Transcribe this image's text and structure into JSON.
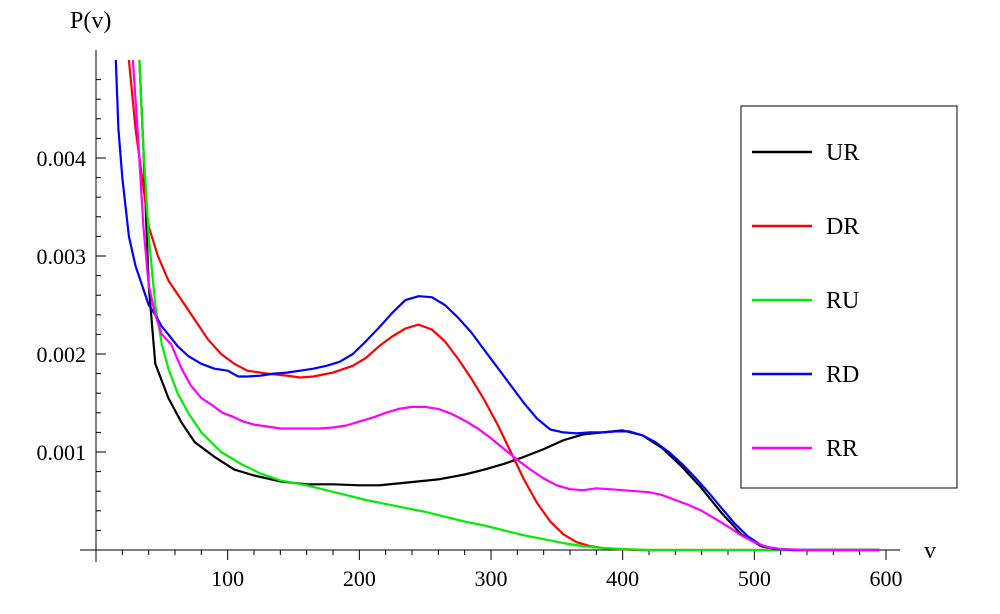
{
  "chart_data": {
    "type": "line",
    "title": "",
    "xlabel": "v",
    "ylabel": "P(v)",
    "xlim": [
      0,
      600
    ],
    "ylim": [
      0,
      0.005
    ],
    "x_ticks": [
      100,
      200,
      300,
      400,
      500,
      600
    ],
    "y_ticks": [
      0.001,
      0.002,
      0.003,
      0.004
    ],
    "x_tick_labels": [
      "100",
      "200",
      "300",
      "400",
      "500",
      "600"
    ],
    "y_tick_labels": [
      "0.001",
      "0.002",
      "0.003",
      "0.004"
    ],
    "grid": false,
    "legend_position": "right",
    "series": [
      {
        "name": "UR",
        "color": "#000000",
        "x": [
          33,
          36,
          40,
          45,
          55,
          65,
          75,
          90,
          105,
          120,
          140,
          160,
          180,
          200,
          215,
          230,
          245,
          260,
          280,
          295,
          310,
          325,
          340,
          355,
          370,
          385,
          400,
          415,
          430,
          445,
          460,
          475,
          490,
          505,
          515,
          530,
          560,
          595
        ],
        "y": [
          0.005,
          0.0041,
          0.0027,
          0.0019,
          0.00155,
          0.0013,
          0.0011,
          0.00095,
          0.00082,
          0.00076,
          0.0007,
          0.00067,
          0.00067,
          0.00066,
          0.00066,
          0.00068,
          0.0007,
          0.00072,
          0.00077,
          0.00082,
          0.00088,
          0.00095,
          0.00103,
          0.00112,
          0.00118,
          0.0012,
          0.00122,
          0.00117,
          0.00104,
          0.00085,
          0.00063,
          0.00038,
          0.00016,
          4e-05,
          1e-05,
          0,
          0,
          0
        ]
      },
      {
        "name": "DR",
        "color": "#ff0000",
        "x": [
          25,
          30,
          35,
          40,
          47,
          55,
          65,
          75,
          85,
          95,
          105,
          115,
          130,
          145,
          155,
          165,
          180,
          195,
          205,
          215,
          225,
          235,
          245,
          255,
          265,
          275,
          285,
          295,
          305,
          315,
          325,
          335,
          345,
          355,
          365,
          375,
          385,
          395,
          410,
          430,
          460,
          500,
          550,
          595
        ],
        "y": [
          0.005,
          0.0043,
          0.0038,
          0.0033,
          0.003,
          0.00275,
          0.00255,
          0.00235,
          0.00215,
          0.002,
          0.0019,
          0.00183,
          0.0018,
          0.00178,
          0.00176,
          0.00177,
          0.00181,
          0.00188,
          0.00196,
          0.00208,
          0.00218,
          0.00226,
          0.0023,
          0.00225,
          0.00213,
          0.00195,
          0.00175,
          0.00153,
          0.00128,
          0.001,
          0.00072,
          0.00048,
          0.00029,
          0.00016,
          8e-05,
          4e-05,
          2e-05,
          1e-05,
          0,
          0,
          0,
          0,
          0,
          0
        ]
      },
      {
        "name": "RU",
        "color": "#00ee00",
        "x": [
          33,
          36,
          40,
          45,
          50,
          55,
          62,
          70,
          80,
          95,
          110,
          125,
          140,
          160,
          175,
          190,
          205,
          220,
          235,
          250,
          265,
          280,
          295,
          310,
          325,
          340,
          355,
          370,
          385,
          400,
          420,
          450,
          500,
          550,
          595
        ],
        "y": [
          0.005,
          0.0041,
          0.0032,
          0.0025,
          0.0021,
          0.00185,
          0.0016,
          0.0014,
          0.0012,
          0.001,
          0.00088,
          0.00078,
          0.00071,
          0.00066,
          0.00061,
          0.00056,
          0.00051,
          0.00047,
          0.00043,
          0.00039,
          0.00034,
          0.00029,
          0.00025,
          0.0002,
          0.00015,
          0.00011,
          7e-05,
          4e-05,
          2e-05,
          1e-05,
          0,
          0,
          0,
          0,
          0
        ]
      },
      {
        "name": "RD",
        "color": "#0000ff",
        "x": [
          15,
          17,
          20,
          25,
          30,
          35,
          40,
          45,
          50,
          55,
          62,
          70,
          80,
          90,
          100,
          108,
          115,
          125,
          135,
          145,
          155,
          165,
          175,
          185,
          195,
          205,
          215,
          225,
          235,
          245,
          255,
          265,
          275,
          285,
          295,
          305,
          315,
          325,
          335,
          345,
          355,
          365,
          375,
          385,
          395,
          405,
          415,
          425,
          435,
          445,
          455,
          465,
          475,
          485,
          495,
          505,
          515,
          530,
          560,
          595
        ],
        "y": [
          0.005,
          0.0043,
          0.0038,
          0.0032,
          0.0029,
          0.0027,
          0.0025,
          0.0024,
          0.00228,
          0.0022,
          0.00208,
          0.00198,
          0.0019,
          0.00185,
          0.00183,
          0.00177,
          0.00177,
          0.00178,
          0.0018,
          0.00181,
          0.00183,
          0.00185,
          0.00188,
          0.00192,
          0.002,
          0.00213,
          0.00227,
          0.00242,
          0.00255,
          0.00259,
          0.00258,
          0.0025,
          0.00237,
          0.00222,
          0.00204,
          0.00186,
          0.00168,
          0.0015,
          0.00134,
          0.00123,
          0.0012,
          0.00119,
          0.0012,
          0.0012,
          0.00121,
          0.00121,
          0.00117,
          0.0011,
          0.001,
          0.00088,
          0.00074,
          0.00059,
          0.00043,
          0.00027,
          0.00014,
          5e-05,
          1e-05,
          0,
          0,
          0
        ]
      },
      {
        "name": "RR",
        "color": "#ff00ff",
        "x": [
          28,
          32,
          36,
          40,
          45,
          50,
          57,
          65,
          72,
          80,
          88,
          96,
          104,
          112,
          120,
          130,
          140,
          150,
          160,
          170,
          180,
          190,
          200,
          210,
          220,
          230,
          240,
          250,
          260,
          270,
          280,
          290,
          300,
          310,
          320,
          330,
          340,
          350,
          360,
          370,
          380,
          390,
          400,
          410,
          420,
          430,
          440,
          450,
          460,
          470,
          480,
          490,
          500,
          510,
          520,
          540,
          570,
          595
        ],
        "y": [
          0.005,
          0.0042,
          0.0033,
          0.0027,
          0.0024,
          0.0022,
          0.0021,
          0.00185,
          0.00168,
          0.00155,
          0.00148,
          0.0014,
          0.00136,
          0.00131,
          0.00128,
          0.00126,
          0.00124,
          0.00124,
          0.00124,
          0.00124,
          0.00125,
          0.00127,
          0.00131,
          0.00135,
          0.0014,
          0.00144,
          0.00146,
          0.00146,
          0.00144,
          0.00139,
          0.00132,
          0.00124,
          0.00114,
          0.00103,
          0.00092,
          0.00082,
          0.00073,
          0.00066,
          0.00062,
          0.00061,
          0.00063,
          0.00062,
          0.00061,
          0.0006,
          0.00059,
          0.00056,
          0.00051,
          0.00046,
          0.0004,
          0.00032,
          0.00024,
          0.00015,
          8e-05,
          3e-05,
          1e-05,
          0,
          0,
          0
        ]
      }
    ]
  }
}
